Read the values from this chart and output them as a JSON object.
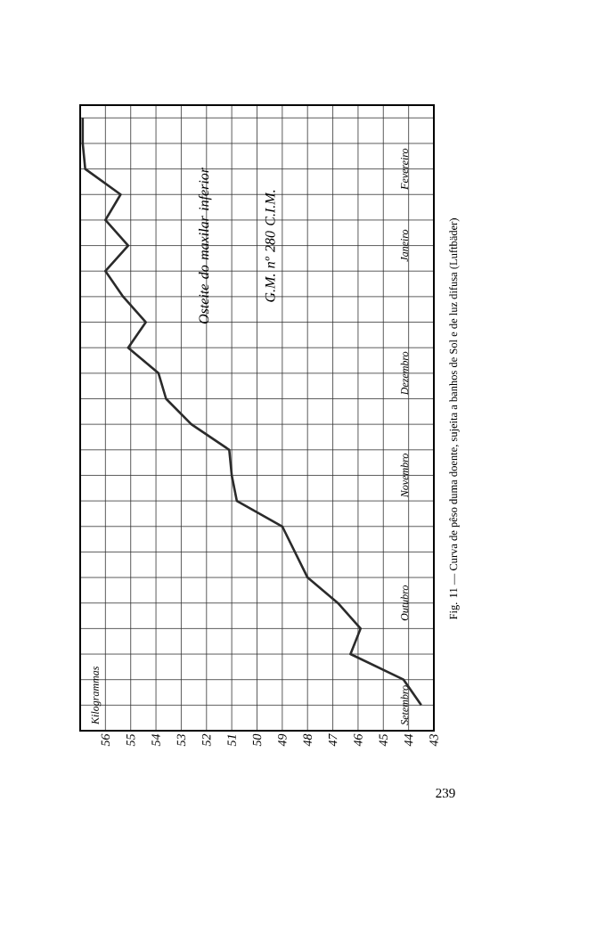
{
  "chart_data": {
    "type": "line",
    "orientation": "horizontal",
    "title": "Fig. 11 — Curva de pêso duma doente, sujeita a banhos de Sol e de luz difusa (Luftbäder)",
    "annotations": [
      "Kilogrammas",
      "Osteite do maxilar inferior",
      "G.M. nº 280 C.I.M.",
      "239"
    ],
    "categories": [
      null,
      null,
      "Fevereiro",
      null,
      null,
      "Janeiro",
      null,
      null,
      null,
      null,
      "Dezembro",
      null,
      null,
      null,
      "Novembro",
      null,
      null,
      null,
      null,
      "Outubro",
      null,
      null,
      null,
      "Setembro"
    ],
    "values": [
      56.9,
      56.9,
      56.8,
      55.4,
      56.0,
      55.1,
      56.0,
      55.3,
      54.4,
      55.1,
      53.9,
      53.6,
      52.6,
      51.1,
      51.0,
      50.8,
      49.0,
      48.5,
      48.0,
      46.8,
      45.9,
      46.3,
      44.2,
      43.5
    ],
    "color": "#2b2b2b",
    "xlim": [
      57,
      43
    ],
    "xticks": [
      56,
      55,
      54,
      53,
      52,
      51,
      50,
      49,
      48,
      47,
      46,
      45,
      44,
      43
    ],
    "grid": true
  }
}
